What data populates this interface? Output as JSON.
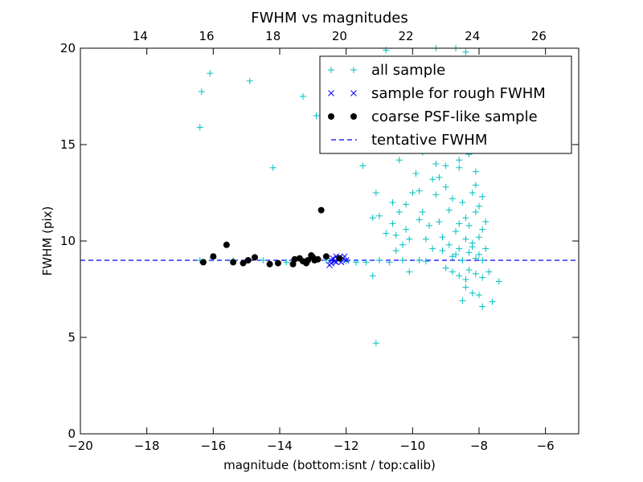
{
  "chart_data": {
    "type": "scatter",
    "title": "FWHM vs magnitudes",
    "xlabel": "magnitude (bottom:isnt / top:calib)",
    "ylabel": "FWHM (pix)",
    "xlim": [
      -20,
      -5
    ],
    "ylim": [
      0,
      20
    ],
    "x_ticks": [
      -20,
      -18,
      -16,
      -14,
      -12,
      -10,
      -8,
      -6
    ],
    "x_tick_labels": [
      "−20",
      "−18",
      "−16",
      "−14",
      "−12",
      "−10",
      "−8",
      "−6"
    ],
    "y_ticks": [
      0,
      5,
      10,
      15,
      20
    ],
    "y_tick_labels": [
      "0",
      "5",
      "10",
      "15",
      "20"
    ],
    "top_axis": {
      "xlim": [
        12.2,
        27.2
      ],
      "ticks": [
        14,
        16,
        18,
        20,
        22,
        24,
        26
      ],
      "tick_labels": [
        "14",
        "16",
        "18",
        "20",
        "22",
        "24",
        "26"
      ]
    },
    "grid": false,
    "legend_position": "top-right",
    "legend": [
      {
        "label": "all sample",
        "marker": "plus",
        "color": "#00bfbf"
      },
      {
        "label": "sample for rough FWHM",
        "marker": "x",
        "color": "#0000ff"
      },
      {
        "label": "coarse PSF-like sample",
        "marker": "dot",
        "color": "#000000"
      },
      {
        "label": "tentative FWHM",
        "marker": "dashed-line",
        "color": "#0000ff"
      }
    ],
    "series": [
      {
        "name": "all sample",
        "marker": "plus",
        "color": "#00bfbf",
        "points": [
          [
            -16.4,
            15.9
          ],
          [
            -16.35,
            17.75
          ],
          [
            -16.1,
            18.7
          ],
          [
            -14.9,
            18.3
          ],
          [
            -14.2,
            13.8
          ],
          [
            -13.3,
            17.5
          ],
          [
            -12.9,
            16.5
          ],
          [
            -11.5,
            13.9
          ],
          [
            -11.1,
            12.5
          ],
          [
            -11.2,
            11.2
          ],
          [
            -11.0,
            11.3
          ],
          [
            -11.2,
            8.2
          ],
          [
            -11.1,
            4.7
          ],
          [
            -16.4,
            9.0
          ],
          [
            -16.0,
            9.1
          ],
          [
            -15.4,
            9.0
          ],
          [
            -14.5,
            9.0
          ],
          [
            -13.8,
            8.9
          ],
          [
            -12.6,
            9.0
          ],
          [
            -12.0,
            8.95
          ],
          [
            -11.7,
            8.9
          ],
          [
            -11.4,
            8.9
          ],
          [
            -11.0,
            9.0
          ],
          [
            -10.7,
            8.9
          ],
          [
            -10.3,
            9.0
          ],
          [
            -10.1,
            8.4
          ],
          [
            -9.8,
            9.0
          ],
          [
            -9.6,
            8.95
          ],
          [
            -10.6,
            12.0
          ],
          [
            -10.4,
            11.5
          ],
          [
            -10.2,
            10.6
          ],
          [
            -10.1,
            10.1
          ],
          [
            -10.5,
            10.3
          ],
          [
            -10.3,
            9.8
          ],
          [
            -10.0,
            12.5
          ],
          [
            -9.9,
            13.5
          ],
          [
            -9.8,
            12.6
          ],
          [
            -9.7,
            11.5
          ],
          [
            -9.5,
            10.8
          ],
          [
            -9.4,
            13.2
          ],
          [
            -9.3,
            12.4
          ],
          [
            -9.2,
            11.0
          ],
          [
            -9.1,
            10.2
          ],
          [
            -10.4,
            14.2
          ],
          [
            -10.0,
            14.9
          ],
          [
            -9.7,
            14.6
          ],
          [
            -9.5,
            15.0
          ],
          [
            -9.3,
            14.0
          ],
          [
            -9.2,
            13.3
          ],
          [
            -9.0,
            12.8
          ],
          [
            -8.9,
            11.6
          ],
          [
            -8.8,
            12.2
          ],
          [
            -8.7,
            10.5
          ],
          [
            -8.6,
            13.8
          ],
          [
            -8.5,
            12.0
          ],
          [
            -8.4,
            11.2
          ],
          [
            -8.3,
            10.8
          ],
          [
            -8.2,
            12.5
          ],
          [
            -8.1,
            11.5
          ],
          [
            -8.0,
            10.2
          ],
          [
            -7.9,
            10.6
          ],
          [
            -8.7,
            14.8
          ],
          [
            -8.5,
            15.4
          ],
          [
            -8.4,
            16.5
          ],
          [
            -8.3,
            17.6
          ],
          [
            -8.2,
            18.6
          ],
          [
            -8.4,
            19.8
          ],
          [
            -8.6,
            14.2
          ],
          [
            -8.3,
            14.5
          ],
          [
            -8.2,
            15.1
          ],
          [
            -8.1,
            13.6
          ],
          [
            -9.1,
            9.5
          ],
          [
            -8.9,
            9.8
          ],
          [
            -8.8,
            9.2
          ],
          [
            -8.6,
            9.6
          ],
          [
            -8.5,
            9.0
          ],
          [
            -8.3,
            9.4
          ],
          [
            -8.2,
            9.7
          ],
          [
            -8.1,
            9.1
          ],
          [
            -8.0,
            9.3
          ],
          [
            -7.9,
            9.0
          ],
          [
            -7.8,
            9.6
          ],
          [
            -9.0,
            8.6
          ],
          [
            -8.8,
            8.4
          ],
          [
            -8.6,
            8.2
          ],
          [
            -8.4,
            8.0
          ],
          [
            -8.3,
            8.5
          ],
          [
            -8.1,
            8.3
          ],
          [
            -7.9,
            8.1
          ],
          [
            -7.7,
            8.4
          ],
          [
            -8.4,
            7.6
          ],
          [
            -8.2,
            7.3
          ],
          [
            -8.0,
            7.2
          ],
          [
            -8.5,
            6.9
          ],
          [
            -7.9,
            6.6
          ],
          [
            -7.6,
            6.85
          ],
          [
            -7.4,
            7.9
          ],
          [
            -8.7,
            9.3
          ],
          [
            -8.6,
            10.9
          ],
          [
            -8.4,
            10.1
          ],
          [
            -8.2,
            9.9
          ],
          [
            -8.0,
            11.8
          ],
          [
            -7.9,
            12.3
          ],
          [
            -8.1,
            12.9
          ],
          [
            -7.8,
            11.0
          ],
          [
            -9.4,
            9.6
          ],
          [
            -9.6,
            10.1
          ],
          [
            -9.8,
            11.1
          ],
          [
            -10.2,
            11.9
          ],
          [
            -10.6,
            10.9
          ],
          [
            -10.8,
            10.4
          ],
          [
            -10.5,
            9.5
          ],
          [
            -9.0,
            13.9
          ],
          [
            -8.8,
            15.8
          ],
          [
            -9.2,
            16.9
          ],
          [
            -8.9,
            17.2
          ],
          [
            -9.3,
            19.4
          ],
          [
            -10.8,
            19.9
          ],
          [
            -9.3,
            20.0
          ],
          [
            -8.7,
            20.0
          ]
        ]
      },
      {
        "name": "sample for rough FWHM",
        "marker": "x",
        "color": "#0000ff",
        "points": [
          [
            -12.5,
            8.75
          ],
          [
            -12.45,
            9.0
          ],
          [
            -12.4,
            9.1
          ],
          [
            -12.35,
            8.95
          ],
          [
            -12.3,
            9.2
          ],
          [
            -12.25,
            9.05
          ],
          [
            -12.2,
            9.15
          ],
          [
            -12.15,
            8.9
          ],
          [
            -12.1,
            9.1
          ],
          [
            -12.05,
            9.2
          ],
          [
            -12.0,
            9.0
          ],
          [
            -12.45,
            8.85
          ],
          [
            -12.3,
            8.9
          ]
        ]
      },
      {
        "name": "coarse PSF-like sample",
        "marker": "dot",
        "color": "#000000",
        "points": [
          [
            -16.3,
            8.9
          ],
          [
            -16.0,
            9.2
          ],
          [
            -15.6,
            9.8
          ],
          [
            -15.4,
            8.9
          ],
          [
            -15.1,
            8.85
          ],
          [
            -14.95,
            9.0
          ],
          [
            -14.75,
            9.15
          ],
          [
            -14.3,
            8.8
          ],
          [
            -14.05,
            8.85
          ],
          [
            -13.6,
            8.8
          ],
          [
            -13.55,
            9.05
          ],
          [
            -13.4,
            9.1
          ],
          [
            -13.3,
            8.95
          ],
          [
            -13.2,
            8.85
          ],
          [
            -13.15,
            9.0
          ],
          [
            -13.05,
            9.25
          ],
          [
            -13.0,
            9.15
          ],
          [
            -12.95,
            9.0
          ],
          [
            -12.85,
            9.05
          ],
          [
            -12.75,
            11.6
          ],
          [
            -12.6,
            9.2
          ],
          [
            -12.2,
            9.1
          ]
        ]
      }
    ],
    "reference_lines": [
      {
        "name": "tentative FWHM",
        "y": 9.0,
        "style": "dashed",
        "color": "#0000ff"
      }
    ]
  }
}
